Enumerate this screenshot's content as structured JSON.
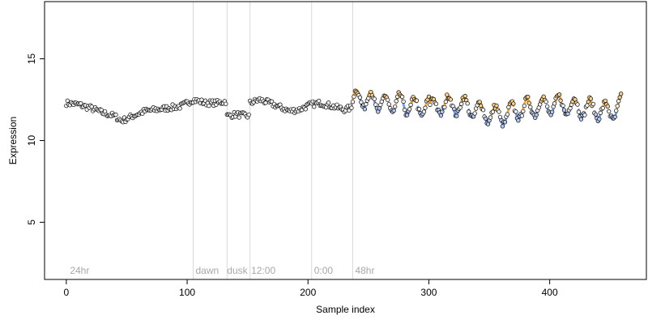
{
  "chart_data": {
    "type": "scatter",
    "title": "",
    "xlabel": "Sample index",
    "ylabel": "Expression",
    "xlim": [
      -18,
      480
    ],
    "ylim": [
      1.5,
      18.5
    ],
    "x_ticks": [
      0,
      100,
      200,
      300,
      400
    ],
    "y_ticks": [
      5,
      10,
      15
    ],
    "grid": false,
    "legend": "none",
    "section_boundaries": [
      105,
      133,
      152,
      203,
      237
    ],
    "section_labels": [
      {
        "text": "24hr",
        "x": 3
      },
      {
        "text": "dawn",
        "x": 107
      },
      {
        "text": "dusk",
        "x": 133
      },
      {
        "text": "12:00",
        "x": 153
      },
      {
        "text": "0:00",
        "x": 205
      },
      {
        "text": "48hr",
        "x": 239
      }
    ],
    "colors": {
      "point_fill": "#f2f2f2",
      "point_stroke": "#000000",
      "high_color": "#f0a030",
      "low_color": "#6a8fd8",
      "section_line": "#d9d9d9",
      "section_label": "#a8a8a8"
    },
    "series": [
      {
        "n_points": 460,
        "profile": [
          [
            0,
            12.3
          ],
          [
            10,
            12.2
          ],
          [
            20,
            12.0
          ],
          [
            30,
            11.7
          ],
          [
            40,
            11.5
          ],
          [
            46,
            11.2
          ],
          [
            55,
            11.5
          ],
          [
            65,
            11.8
          ],
          [
            75,
            11.9
          ],
          [
            85,
            12.0
          ],
          [
            95,
            12.1
          ],
          [
            105,
            12.5
          ],
          [
            115,
            12.3
          ],
          [
            125,
            12.3
          ],
          [
            132,
            12.4
          ],
          [
            133,
            11.5
          ],
          [
            140,
            11.6
          ],
          [
            151,
            11.5
          ],
          [
            152,
            12.3
          ],
          [
            160,
            12.5
          ],
          [
            168,
            12.3
          ],
          [
            175,
            12.1
          ],
          [
            185,
            11.8
          ],
          [
            193,
            11.9
          ],
          [
            202,
            12.2
          ],
          [
            210,
            12.3
          ],
          [
            220,
            12.1
          ],
          [
            230,
            11.9
          ],
          [
            236,
            12.0
          ],
          [
            237,
            12.5
          ],
          [
            244,
            12.6
          ],
          [
            255,
            12.4
          ],
          [
            265,
            12.2
          ],
          [
            275,
            12.3
          ],
          [
            285,
            12.1
          ],
          [
            300,
            12.0
          ],
          [
            315,
            12.2
          ],
          [
            330,
            12.1
          ],
          [
            345,
            11.7
          ],
          [
            360,
            11.5
          ],
          [
            375,
            11.9
          ],
          [
            390,
            12.1
          ],
          [
            410,
            12.2
          ],
          [
            425,
            12.0
          ],
          [
            440,
            11.9
          ],
          [
            450,
            11.7
          ],
          [
            460,
            12.2
          ]
        ],
        "oscillations": [
          {
            "from": 237,
            "to": 300,
            "amplitude": 0.55,
            "period": 12
          },
          {
            "from": 300,
            "to": 460,
            "amplitude": 0.55,
            "period": 13
          }
        ]
      }
    ]
  }
}
